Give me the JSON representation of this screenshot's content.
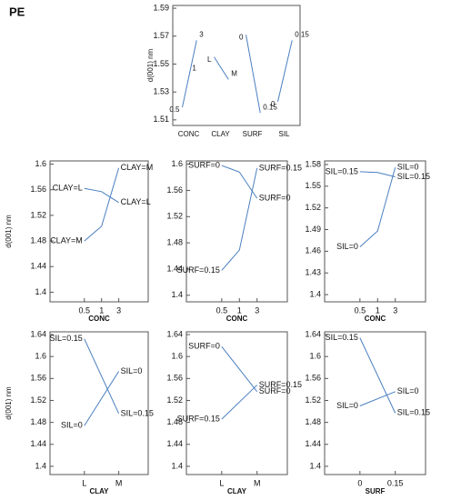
{
  "chart_data": [
    {
      "type": "main_effects",
      "title": "PE",
      "ylabel": "d(001) nm",
      "color": "#4a7fc0",
      "ylim": [
        1.506,
        1.592
      ],
      "yticks": [
        1.51,
        1.53,
        1.55,
        1.57,
        1.59
      ],
      "panels": [
        {
          "name": "CONC",
          "categories": [
            "0.5",
            "1",
            "3"
          ],
          "values": [
            1.519,
            1.543,
            1.567
          ]
        },
        {
          "name": "CLAY",
          "categories": [
            "L",
            "M"
          ],
          "values": [
            1.555,
            1.539
          ]
        },
        {
          "name": "SURF",
          "categories": [
            "0",
            "0.15"
          ],
          "values": [
            1.571,
            1.515
          ]
        },
        {
          "name": "SIL",
          "categories": [
            "0",
            "0.15"
          ],
          "values": [
            1.523,
            1.567
          ]
        }
      ]
    },
    {
      "type": "interaction",
      "ylabel": "d(001) nm",
      "xlabel": "CONC",
      "categories": [
        "0.5",
        "1",
        "3"
      ],
      "ylim": [
        1.385,
        1.605
      ],
      "yticks": [
        1.4,
        1.44,
        1.48,
        1.52,
        1.56,
        1.6
      ],
      "series": [
        {
          "name": "CLAY=L",
          "color": "#4a7fc0",
          "values": [
            1.562,
            1.557,
            1.54
          ]
        },
        {
          "name": "CLAY=M",
          "color": "#4a7fc0",
          "values": [
            1.48,
            1.503,
            1.594
          ]
        }
      ]
    },
    {
      "type": "interaction",
      "xlabel": "CONC",
      "categories": [
        "0.5",
        "1",
        "3"
      ],
      "ylim": [
        1.39,
        1.605
      ],
      "yticks": [
        1.4,
        1.44,
        1.48,
        1.52,
        1.56,
        1.6
      ],
      "series": [
        {
          "name": "SURF=0",
          "color": "#4a7fc0",
          "values": [
            1.598,
            1.588,
            1.548
          ]
        },
        {
          "name": "SURF=0.15",
          "color": "#4a7fc0",
          "values": [
            1.438,
            1.469,
            1.594
          ]
        }
      ]
    },
    {
      "type": "interaction",
      "xlabel": "CONC",
      "categories": [
        "0.5",
        "1",
        "3"
      ],
      "ylim": [
        1.39,
        1.585
      ],
      "yticks": [
        1.4,
        1.43,
        1.46,
        1.49,
        1.52,
        1.55,
        1.58
      ],
      "series": [
        {
          "name": "SIL=0.15",
          "color": "#4a7fc0",
          "values": [
            1.57,
            1.569,
            1.563
          ]
        },
        {
          "name": "SIL=0",
          "color": "#4a7fc0",
          "values": [
            1.466,
            1.488,
            1.576
          ]
        }
      ]
    },
    {
      "type": "interaction",
      "ylabel": "d(001) nm",
      "xlabel": "CLAY",
      "categories": [
        "L",
        "M"
      ],
      "ylim": [
        1.385,
        1.645
      ],
      "yticks": [
        1.4,
        1.44,
        1.48,
        1.52,
        1.56,
        1.6,
        1.64
      ],
      "series": [
        {
          "name": "SIL=0.15",
          "color": "#4a7fc0",
          "values": [
            1.632,
            1.496
          ]
        },
        {
          "name": "SIL=0",
          "color": "#4a7fc0",
          "values": [
            1.474,
            1.573
          ]
        }
      ]
    },
    {
      "type": "interaction",
      "xlabel": "CLAY",
      "categories": [
        "L",
        "M"
      ],
      "ylim": [
        1.385,
        1.645
      ],
      "yticks": [
        1.4,
        1.44,
        1.48,
        1.52,
        1.56,
        1.6,
        1.64
      ],
      "series": [
        {
          "name": "SURF=0",
          "color": "#4a7fc0",
          "values": [
            1.618,
            1.536
          ]
        },
        {
          "name": "SURF=0.15",
          "color": "#4a7fc0",
          "values": [
            1.486,
            1.548
          ]
        }
      ]
    },
    {
      "type": "interaction",
      "xlabel": "SURF",
      "categories": [
        "0",
        "0.15"
      ],
      "ylim": [
        1.385,
        1.645
      ],
      "yticks": [
        1.4,
        1.44,
        1.48,
        1.52,
        1.56,
        1.6,
        1.64
      ],
      "series": [
        {
          "name": "SIL=0.15",
          "color": "#4a7fc0",
          "values": [
            1.634,
            1.497
          ]
        },
        {
          "name": "SIL=0",
          "color": "#4a7fc0",
          "values": [
            1.51,
            1.536
          ]
        }
      ]
    }
  ]
}
